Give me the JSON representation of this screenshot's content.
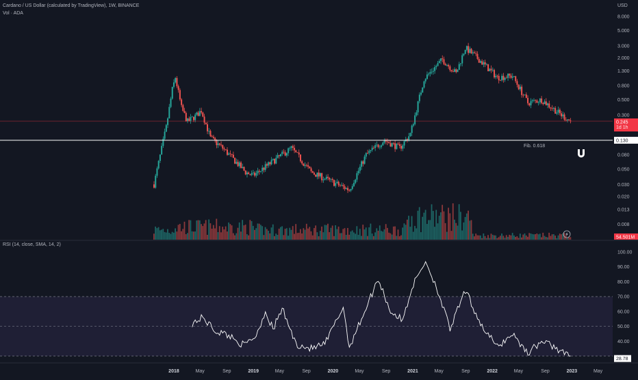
{
  "header": {
    "symbol_line": "Cardano / US Dollar (calculated by TradingView), 1W, BINANCE",
    "volume_line": "Vol · ADA",
    "rsi_line": "RSI (14, close, SMA, 14, 2)"
  },
  "price_axis": {
    "unit": "USD",
    "ticks": [
      "8.000",
      "5.000",
      "3.000",
      "2.000",
      "1.300",
      "0.800",
      "0.500",
      "0.300",
      "0.080",
      "0.050",
      "0.030",
      "0.020",
      "0.013",
      "0.008"
    ]
  },
  "badges": {
    "price": "0.245",
    "price_sub": "1d 1h",
    "fib_value": "0.130",
    "fib_label": "Fib. 0.618",
    "volume": "54.501M",
    "rsi": "28.78"
  },
  "rsi_axis": {
    "ticks": [
      "100.00",
      "90.00",
      "80.00",
      "70.00",
      "60.00",
      "50.00",
      "40.00"
    ]
  },
  "time_axis": {
    "labels": [
      {
        "text": "2018",
        "year": true
      },
      {
        "text": "May",
        "year": false
      },
      {
        "text": "Sep",
        "year": false
      },
      {
        "text": "2019",
        "year": true
      },
      {
        "text": "May",
        "year": false
      },
      {
        "text": "Sep",
        "year": false
      },
      {
        "text": "2020",
        "year": true
      },
      {
        "text": "May",
        "year": false
      },
      {
        "text": "Sep",
        "year": false
      },
      {
        "text": "2021",
        "year": true
      },
      {
        "text": "May",
        "year": false
      },
      {
        "text": "Sep",
        "year": false
      },
      {
        "text": "2022",
        "year": true
      },
      {
        "text": "May",
        "year": false
      },
      {
        "text": "Sep",
        "year": false
      },
      {
        "text": "2023",
        "year": true
      },
      {
        "text": "May",
        "year": false
      }
    ]
  },
  "colors": {
    "up": "#26a69a",
    "down": "#ef5350",
    "current_price": "#f23645",
    "fib_line": "#ffffff",
    "rsi_line": "#ffffff",
    "rsi_band": "#7e57c2",
    "background": "#131722"
  },
  "chart_data": {
    "type": "line",
    "price_scale": "log",
    "price_range": [
      0.006,
      10
    ],
    "rsi_range": [
      30,
      100
    ],
    "rsi_band": [
      30,
      70
    ],
    "rsi_midline": 50,
    "current_price": 0.245,
    "fib_level": 0.13,
    "weekly_close_anchors": [
      {
        "date": "2017-10-02",
        "close": 0.03
      },
      {
        "date": "2017-11-27",
        "close": 0.2
      },
      {
        "date": "2017-12-25",
        "close": 0.7
      },
      {
        "date": "2018-01-08",
        "close": 1.05
      },
      {
        "date": "2018-02-05",
        "close": 0.38
      },
      {
        "date": "2018-03-05",
        "close": 0.24
      },
      {
        "date": "2018-04-16",
        "close": 0.3
      },
      {
        "date": "2018-05-07",
        "close": 0.35
      },
      {
        "date": "2018-06-18",
        "close": 0.14
      },
      {
        "date": "2018-08-13",
        "close": 0.1
      },
      {
        "date": "2018-11-26",
        "close": 0.045
      },
      {
        "date": "2018-12-31",
        "close": 0.04
      },
      {
        "date": "2019-06-24",
        "close": 0.1
      },
      {
        "date": "2019-09-23",
        "close": 0.045
      },
      {
        "date": "2019-12-23",
        "close": 0.033
      },
      {
        "date": "2020-03-16",
        "close": 0.025
      },
      {
        "date": "2020-06-01",
        "close": 0.08
      },
      {
        "date": "2020-08-24",
        "close": 0.13
      },
      {
        "date": "2020-11-02",
        "close": 0.1
      },
      {
        "date": "2020-12-21",
        "close": 0.16
      },
      {
        "date": "2021-02-22",
        "close": 1.0
      },
      {
        "date": "2021-05-17",
        "close": 1.9
      },
      {
        "date": "2021-07-19",
        "close": 1.2
      },
      {
        "date": "2021-08-30",
        "close": 2.8
      },
      {
        "date": "2021-11-01",
        "close": 1.9
      },
      {
        "date": "2022-01-24",
        "close": 1.05
      },
      {
        "date": "2022-04-04",
        "close": 1.1
      },
      {
        "date": "2022-06-13",
        "close": 0.45
      },
      {
        "date": "2022-08-15",
        "close": 0.5
      },
      {
        "date": "2022-11-14",
        "close": 0.3
      },
      {
        "date": "2022-12-26",
        "close": 0.245
      }
    ],
    "rsi_anchors": [
      {
        "date": "2018-03-26",
        "rsi": 52
      },
      {
        "date": "2018-05-14",
        "rsi": 56
      },
      {
        "date": "2018-07-09",
        "rsi": 47
      },
      {
        "date": "2018-09-10",
        "rsi": 44
      },
      {
        "date": "2018-11-19",
        "rsi": 37
      },
      {
        "date": "2019-01-14",
        "rsi": 44
      },
      {
        "date": "2019-02-25",
        "rsi": 60
      },
      {
        "date": "2019-04-01",
        "rsi": 48
      },
      {
        "date": "2019-05-13",
        "rsi": 62
      },
      {
        "date": "2019-07-15",
        "rsi": 38
      },
      {
        "date": "2019-09-23",
        "rsi": 35
      },
      {
        "date": "2019-11-25",
        "rsi": 38
      },
      {
        "date": "2020-02-17",
        "rsi": 63
      },
      {
        "date": "2020-03-16",
        "rsi": 36
      },
      {
        "date": "2020-05-25",
        "rsi": 60
      },
      {
        "date": "2020-07-27",
        "rsi": 82
      },
      {
        "date": "2020-09-21",
        "rsi": 60
      },
      {
        "date": "2020-11-16",
        "rsi": 54
      },
      {
        "date": "2020-12-28",
        "rsi": 76
      },
      {
        "date": "2021-03-01",
        "rsi": 94
      },
      {
        "date": "2021-04-26",
        "rsi": 74
      },
      {
        "date": "2021-06-21",
        "rsi": 48
      },
      {
        "date": "2021-08-30",
        "rsi": 74
      },
      {
        "date": "2021-11-15",
        "rsi": 50
      },
      {
        "date": "2022-01-24",
        "rsi": 36
      },
      {
        "date": "2022-04-04",
        "rsi": 45
      },
      {
        "date": "2022-06-13",
        "rsi": 32
      },
      {
        "date": "2022-08-15",
        "rsi": 40
      },
      {
        "date": "2022-10-17",
        "rsi": 36
      },
      {
        "date": "2022-12-26",
        "rsi": 28.78
      }
    ]
  }
}
